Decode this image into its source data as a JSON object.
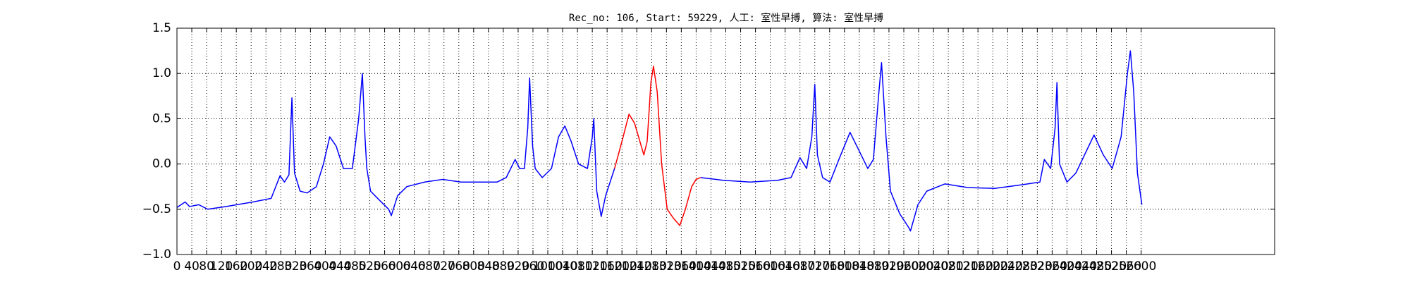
{
  "chart_data": {
    "type": "line",
    "title": "Rec_no: 106, Start: 59229, 人工: 室性早搏, 算法: 室性早搏",
    "xlim": [
      0,
      2960
    ],
    "xticks": [
      0,
      40,
      80,
      120,
      160,
      200,
      240,
      280,
      320,
      360,
      400,
      440,
      480,
      520,
      560,
      600,
      640,
      680,
      720,
      760,
      800,
      840,
      880,
      920,
      960,
      1000,
      1040,
      1080,
      1120,
      1160,
      1200,
      1240,
      1280,
      1320,
      1360,
      1400,
      1440,
      1480,
      1520,
      1560,
      1600,
      1640,
      1680,
      1720,
      1760,
      1800,
      1840,
      1880,
      1920,
      1960,
      2000,
      2040,
      2080,
      2120,
      2160,
      2200,
      2240,
      2280,
      2320,
      2360,
      2400,
      2440,
      2480,
      2520,
      2560,
      2600
    ],
    "ylim": [
      -1,
      1.5
    ],
    "yticks": [
      {
        "value": -1,
        "label": "−1.0"
      },
      {
        "value": -0.5,
        "label": "−0.5"
      },
      {
        "value": 0,
        "label": "0.0"
      },
      0.5,
      {
        "value": 1,
        "label": "1.0"
      },
      1.5
    ],
    "grid": true,
    "x": [
      0,
      22,
      34,
      59,
      83,
      132,
      205,
      254,
      278,
      290,
      302,
      310,
      317,
      332,
      351,
      376,
      395,
      412,
      429,
      449,
      473,
      490,
      500,
      507,
      512,
      522,
      546,
      571,
      578,
      595,
      620,
      668,
      717,
      766,
      815,
      863,
      888,
      912,
      924,
      937,
      946,
      951,
      959,
      966,
      985,
      1010,
      1029,
      1046,
      1063,
      1083,
      1107,
      1120,
      1124,
      1132,
      1144,
      1156,
      1180,
      1200,
      1219,
      1234,
      1259,
      1268,
      1278,
      1285,
      1295,
      1307,
      1322,
      1339,
      1356,
      1371,
      1388,
      1400,
      1412,
      1473,
      1546,
      1620,
      1656,
      1680,
      1698,
      1712,
      1720,
      1727,
      1741,
      1761,
      1785,
      1815,
      1839,
      1863,
      1878,
      1893,
      1900,
      1912,
      1924,
      1949,
      1973,
      1978,
      1998,
      2022,
      2071,
      2132,
      2205,
      2278,
      2327,
      2339,
      2356,
      2368,
      2373,
      2380,
      2400,
      2424,
      2473,
      2498,
      2522,
      2546,
      2563,
      2571,
      2580,
      2590,
      2602
    ],
    "series": [
      {
        "color": "#0000ff",
        "values": [
          -0.48,
          -0.42,
          -0.47,
          -0.45,
          -0.5,
          -0.47,
          -0.42,
          -0.38,
          -0.13,
          -0.2,
          -0.12,
          0.73,
          -0.1,
          -0.3,
          -0.32,
          -0.25,
          0.0,
          0.3,
          0.2,
          -0.05,
          -0.05,
          0.5,
          1.0,
          0.3,
          -0.05,
          -0.3,
          -0.4,
          -0.5,
          -0.57,
          -0.35,
          -0.25,
          -0.2,
          -0.17,
          -0.2,
          -0.2,
          -0.2,
          -0.15,
          0.05,
          -0.05,
          -0.05,
          0.4,
          0.95,
          0.2,
          -0.05,
          -0.15,
          -0.05,
          0.3,
          0.42,
          0.25,
          0.0,
          -0.05,
          0.3,
          0.5,
          -0.3,
          -0.58,
          -0.35,
          -0.05,
          null,
          null,
          null,
          null,
          null,
          null,
          null,
          null,
          null,
          null,
          null,
          null,
          null,
          null,
          null,
          -0.15,
          -0.18,
          -0.2,
          -0.18,
          -0.15,
          0.07,
          -0.05,
          0.3,
          0.88,
          0.1,
          -0.15,
          -0.2,
          0.05,
          0.35,
          0.15,
          -0.05,
          0.05,
          0.8,
          1.12,
          0.3,
          -0.3,
          -0.55,
          -0.7,
          -0.74,
          -0.45,
          -0.3,
          -0.22,
          -0.26,
          -0.27,
          -0.23,
          -0.2,
          0.05,
          -0.05,
          0.4,
          0.9,
          0.0,
          -0.2,
          -0.1,
          0.32,
          0.1,
          -0.05,
          0.3,
          1.0,
          1.25,
          0.8,
          -0.1,
          -0.45
        ]
      },
      {
        "color": "#ff0000",
        "values": [
          null,
          null,
          null,
          null,
          null,
          null,
          null,
          null,
          null,
          null,
          null,
          null,
          null,
          null,
          null,
          null,
          null,
          null,
          null,
          null,
          null,
          null,
          null,
          null,
          null,
          null,
          null,
          null,
          null,
          null,
          null,
          null,
          null,
          null,
          null,
          null,
          null,
          null,
          null,
          null,
          null,
          null,
          null,
          null,
          null,
          null,
          null,
          null,
          null,
          null,
          null,
          null,
          null,
          null,
          null,
          null,
          -0.05,
          0.25,
          0.55,
          0.45,
          0.1,
          0.25,
          0.9,
          1.08,
          0.8,
          0.0,
          -0.5,
          -0.6,
          -0.68,
          -0.5,
          -0.25,
          -0.17,
          -0.15,
          null,
          null,
          null,
          null,
          null,
          null,
          null,
          null,
          null,
          null,
          null,
          null,
          null,
          null,
          null,
          null,
          null,
          null,
          null,
          null,
          null,
          null,
          null,
          null,
          null,
          null,
          null,
          null,
          null,
          null,
          null,
          null,
          null,
          null,
          null,
          null,
          null,
          null,
          null,
          null,
          null,
          null,
          null,
          null,
          null,
          null
        ]
      }
    ]
  }
}
